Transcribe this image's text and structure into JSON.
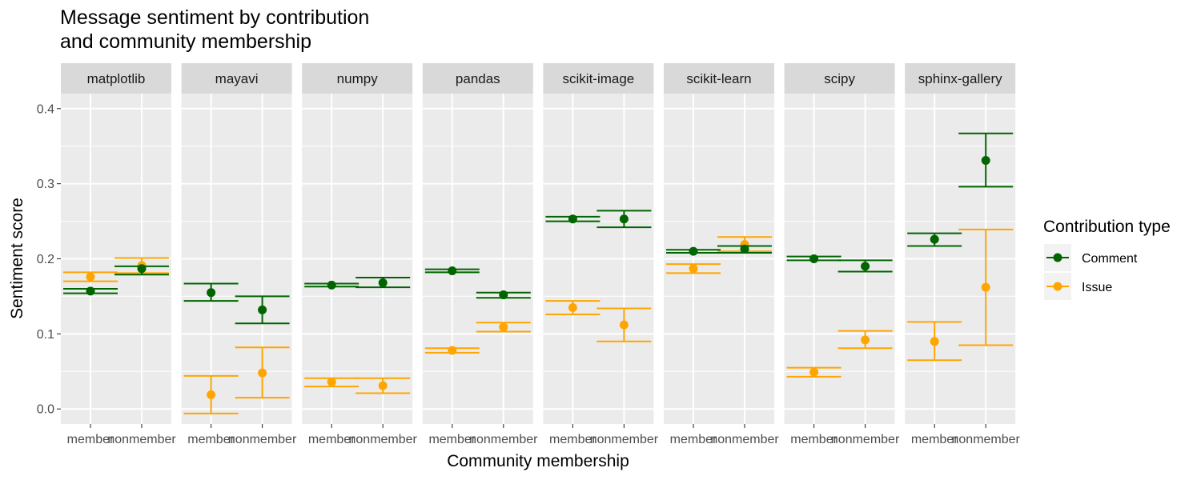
{
  "chart_data": {
    "type": "scatter",
    "title_lines": [
      "Message sentiment by contribution",
      "and community membership"
    ],
    "xlabel": "Community membership",
    "ylabel": "Sentiment score",
    "x_categories": [
      "member",
      "nonmember"
    ],
    "ylim": [
      -0.02,
      0.42
    ],
    "y_ticks": [
      0.0,
      0.1,
      0.2,
      0.3,
      0.4
    ],
    "y_tick_labels": [
      "0.0",
      "0.1",
      "0.2",
      "0.3",
      "0.4"
    ],
    "grid": true,
    "legend": {
      "title": "Contribution type",
      "position": "right",
      "entries": [
        {
          "name": "Comment",
          "color": "#006400"
        },
        {
          "name": "Issue",
          "color": "#FFA500"
        }
      ]
    },
    "series": [
      {
        "name": "Comment",
        "color": "#006400"
      },
      {
        "name": "Issue",
        "color": "#FFA500"
      }
    ],
    "facets": [
      {
        "name": "matplotlib",
        "points": [
          {
            "series": "Comment",
            "x": "member",
            "y": 0.157,
            "ymin": 0.154,
            "ymax": 0.16
          },
          {
            "series": "Comment",
            "x": "nonmember",
            "y": 0.187,
            "ymin": 0.179,
            "ymax": 0.19
          },
          {
            "series": "Issue",
            "x": "member",
            "y": 0.176,
            "ymin": 0.17,
            "ymax": 0.182
          },
          {
            "series": "Issue",
            "x": "nonmember",
            "y": 0.191,
            "ymin": 0.181,
            "ymax": 0.201
          }
        ]
      },
      {
        "name": "mayavi",
        "points": [
          {
            "series": "Comment",
            "x": "member",
            "y": 0.155,
            "ymin": 0.144,
            "ymax": 0.167
          },
          {
            "series": "Comment",
            "x": "nonmember",
            "y": 0.132,
            "ymin": 0.114,
            "ymax": 0.15
          },
          {
            "series": "Issue",
            "x": "member",
            "y": 0.019,
            "ymin": -0.006,
            "ymax": 0.044
          },
          {
            "series": "Issue",
            "x": "nonmember",
            "y": 0.048,
            "ymin": 0.015,
            "ymax": 0.082
          }
        ]
      },
      {
        "name": "numpy",
        "points": [
          {
            "series": "Comment",
            "x": "member",
            "y": 0.165,
            "ymin": 0.163,
            "ymax": 0.167
          },
          {
            "series": "Comment",
            "x": "nonmember",
            "y": 0.168,
            "ymin": 0.162,
            "ymax": 0.175
          },
          {
            "series": "Issue",
            "x": "member",
            "y": 0.036,
            "ymin": 0.03,
            "ymax": 0.041
          },
          {
            "series": "Issue",
            "x": "nonmember",
            "y": 0.031,
            "ymin": 0.021,
            "ymax": 0.041
          }
        ]
      },
      {
        "name": "pandas",
        "points": [
          {
            "series": "Comment",
            "x": "member",
            "y": 0.184,
            "ymin": 0.182,
            "ymax": 0.186
          },
          {
            "series": "Comment",
            "x": "nonmember",
            "y": 0.152,
            "ymin": 0.148,
            "ymax": 0.155
          },
          {
            "series": "Issue",
            "x": "member",
            "y": 0.078,
            "ymin": 0.075,
            "ymax": 0.081
          },
          {
            "series": "Issue",
            "x": "nonmember",
            "y": 0.109,
            "ymin": 0.103,
            "ymax": 0.115
          }
        ]
      },
      {
        "name": "scikit-image",
        "points": [
          {
            "series": "Comment",
            "x": "member",
            "y": 0.253,
            "ymin": 0.25,
            "ymax": 0.256
          },
          {
            "series": "Comment",
            "x": "nonmember",
            "y": 0.253,
            "ymin": 0.242,
            "ymax": 0.264
          },
          {
            "series": "Issue",
            "x": "member",
            "y": 0.135,
            "ymin": 0.126,
            "ymax": 0.144
          },
          {
            "series": "Issue",
            "x": "nonmember",
            "y": 0.112,
            "ymin": 0.09,
            "ymax": 0.134
          }
        ]
      },
      {
        "name": "scikit-learn",
        "points": [
          {
            "series": "Comment",
            "x": "member",
            "y": 0.21,
            "ymin": 0.208,
            "ymax": 0.212
          },
          {
            "series": "Comment",
            "x": "nonmember",
            "y": 0.213,
            "ymin": 0.208,
            "ymax": 0.217
          },
          {
            "series": "Issue",
            "x": "member",
            "y": 0.187,
            "ymin": 0.181,
            "ymax": 0.193
          },
          {
            "series": "Issue",
            "x": "nonmember",
            "y": 0.219,
            "ymin": 0.21,
            "ymax": 0.229
          }
        ]
      },
      {
        "name": "scipy",
        "points": [
          {
            "series": "Comment",
            "x": "member",
            "y": 0.2,
            "ymin": 0.198,
            "ymax": 0.203
          },
          {
            "series": "Comment",
            "x": "nonmember",
            "y": 0.19,
            "ymin": 0.183,
            "ymax": 0.198
          },
          {
            "series": "Issue",
            "x": "member",
            "y": 0.049,
            "ymin": 0.043,
            "ymax": 0.055
          },
          {
            "series": "Issue",
            "x": "nonmember",
            "y": 0.092,
            "ymin": 0.081,
            "ymax": 0.104
          }
        ]
      },
      {
        "name": "sphinx-gallery",
        "points": [
          {
            "series": "Comment",
            "x": "member",
            "y": 0.226,
            "ymin": 0.217,
            "ymax": 0.234
          },
          {
            "series": "Comment",
            "x": "nonmember",
            "y": 0.331,
            "ymin": 0.296,
            "ymax": 0.367
          },
          {
            "series": "Issue",
            "x": "member",
            "y": 0.09,
            "ymin": 0.065,
            "ymax": 0.116
          },
          {
            "series": "Issue",
            "x": "nonmember",
            "y": 0.162,
            "ymin": 0.085,
            "ymax": 0.239
          }
        ]
      }
    ]
  }
}
